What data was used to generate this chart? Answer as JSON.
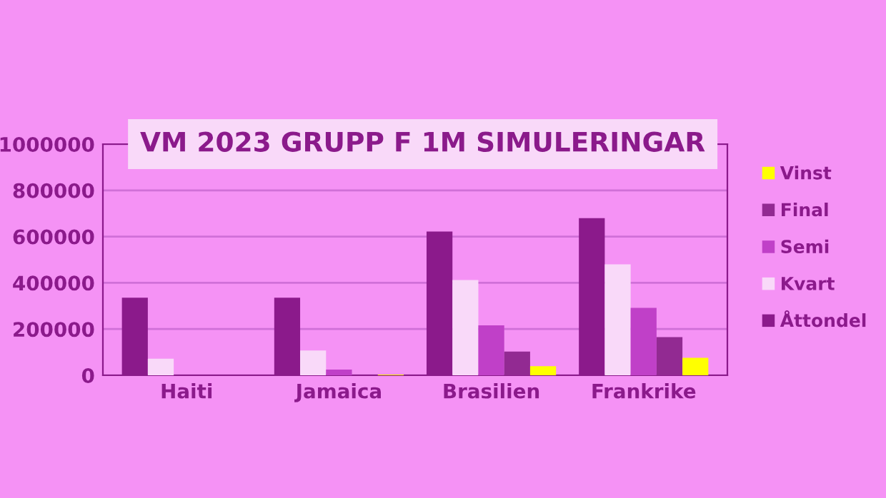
{
  "chart_data": {
    "type": "bar",
    "title": "VM 2023 GRUPP F 1M SIMULERINGAR",
    "categories": [
      "Haiti",
      "Jamaica",
      "Brasilien",
      "Frankrike"
    ],
    "series": [
      {
        "name": "Åttondel",
        "color": "#8b1a8b",
        "values": [
          336000,
          336000,
          622000,
          680000
        ]
      },
      {
        "name": "Kvart",
        "color": "#f9d9f9",
        "values": [
          72000,
          107000,
          412000,
          480000
        ]
      },
      {
        "name": "Semi",
        "color": "#c040c8",
        "values": [
          null,
          25000,
          216000,
          292000
        ]
      },
      {
        "name": "Final",
        "color": "#922a92",
        "values": [
          0,
          null,
          103000,
          165000
        ]
      },
      {
        "name": "Vinst",
        "color": "#ffff00",
        "values": [
          0,
          3000,
          39000,
          76000
        ]
      }
    ],
    "ylim": [
      0,
      1000000
    ],
    "yticks": [
      0,
      200000,
      400000,
      600000,
      800000,
      1000000
    ],
    "grid": "y",
    "legend": "right"
  }
}
